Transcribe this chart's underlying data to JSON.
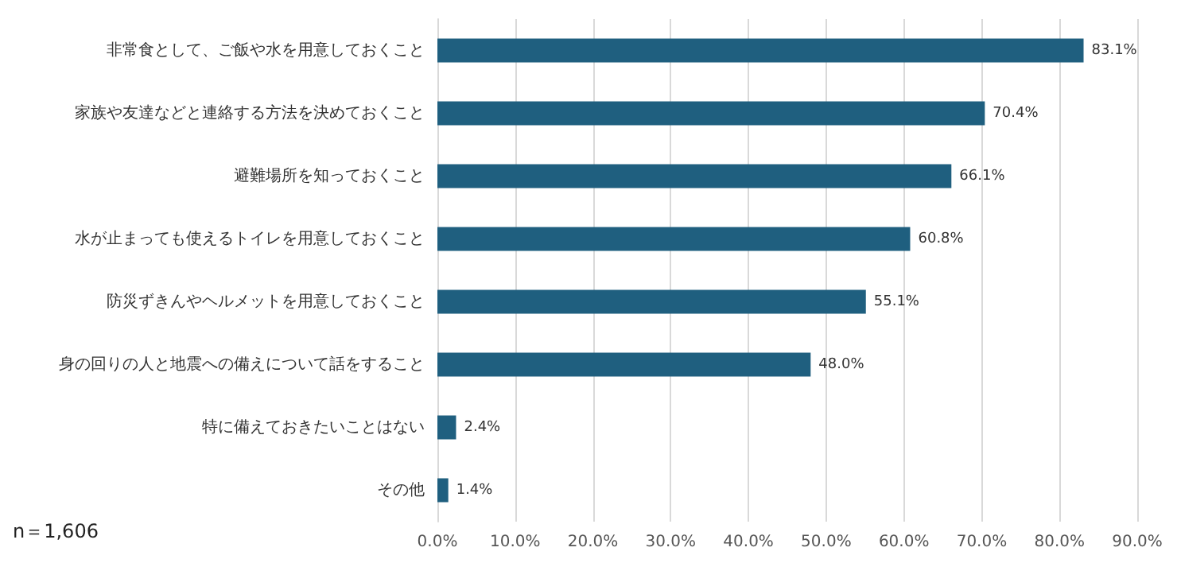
{
  "chart_data": {
    "type": "bar",
    "orientation": "horizontal",
    "categories": [
      "非常食として、ご飯や水を用意しておくこと",
      "家族や友達などと連絡する方法を決めておくこと",
      "避難場所を知っておくこと",
      "水が止まっても使えるトイレを用意しておくこと",
      "防災ずきんやヘルメットを用意しておくこと",
      "身の回りの人と地震への備えについて話をすること",
      "特に備えておきたいことはない",
      "その他"
    ],
    "values": [
      83.1,
      70.4,
      66.1,
      60.8,
      55.1,
      48.0,
      2.4,
      1.4
    ],
    "value_labels": [
      "83.1%",
      "70.4%",
      "66.1%",
      "60.8%",
      "55.1%",
      "48.0%",
      "2.4%",
      "1.4%"
    ],
    "color": "#1f5f7f",
    "xlim": [
      0,
      90
    ],
    "xticks": [
      {
        "value": 0,
        "label": "0.0%"
      },
      {
        "value": 10,
        "label": "10.0%"
      },
      {
        "value": 20,
        "label": "20.0%"
      },
      {
        "value": 30,
        "label": "30.0%"
      },
      {
        "value": 40,
        "label": "40.0%"
      },
      {
        "value": 50,
        "label": "50.0%"
      },
      {
        "value": 60,
        "label": "60.0%"
      },
      {
        "value": 70,
        "label": "70.0%"
      },
      {
        "value": 80,
        "label": "80.0%"
      },
      {
        "value": 90,
        "label": "90.0%"
      }
    ],
    "grid": "x",
    "annotations": [
      "n＝1,606"
    ]
  }
}
